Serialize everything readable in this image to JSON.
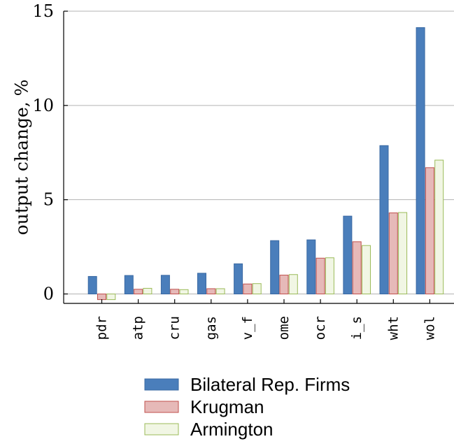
{
  "chart_data": {
    "type": "bar",
    "title": "",
    "xlabel": "",
    "ylabel": "output change, %",
    "ylim": [
      -0.5,
      15
    ],
    "yticks": [
      0,
      5,
      10,
      15
    ],
    "grid": "horizontal",
    "legend_position": "bottom",
    "categories": [
      "pdr",
      "atp",
      "cru",
      "gas",
      "v_f",
      "ome",
      "ocr",
      "i_s",
      "wht",
      "wol"
    ],
    "series": [
      {
        "name": "Bilateral Rep. Firms",
        "fill": "#4a7ebb",
        "stroke": "#3a69a3",
        "values": [
          0.93,
          0.98,
          0.99,
          1.1,
          1.6,
          2.83,
          2.87,
          4.13,
          7.87,
          14.13
        ]
      },
      {
        "name": "Krugman",
        "fill": "#e6b9b8",
        "stroke": "#c0504d",
        "values": [
          -0.3,
          0.25,
          0.25,
          0.28,
          0.53,
          1.0,
          1.9,
          2.77,
          4.3,
          6.7
        ]
      },
      {
        "name": "Armington",
        "fill": "#f1f6e4",
        "stroke": "#9bbb59",
        "values": [
          -0.3,
          0.3,
          0.23,
          0.28,
          0.55,
          1.03,
          1.92,
          2.57,
          4.32,
          7.1
        ]
      }
    ]
  }
}
